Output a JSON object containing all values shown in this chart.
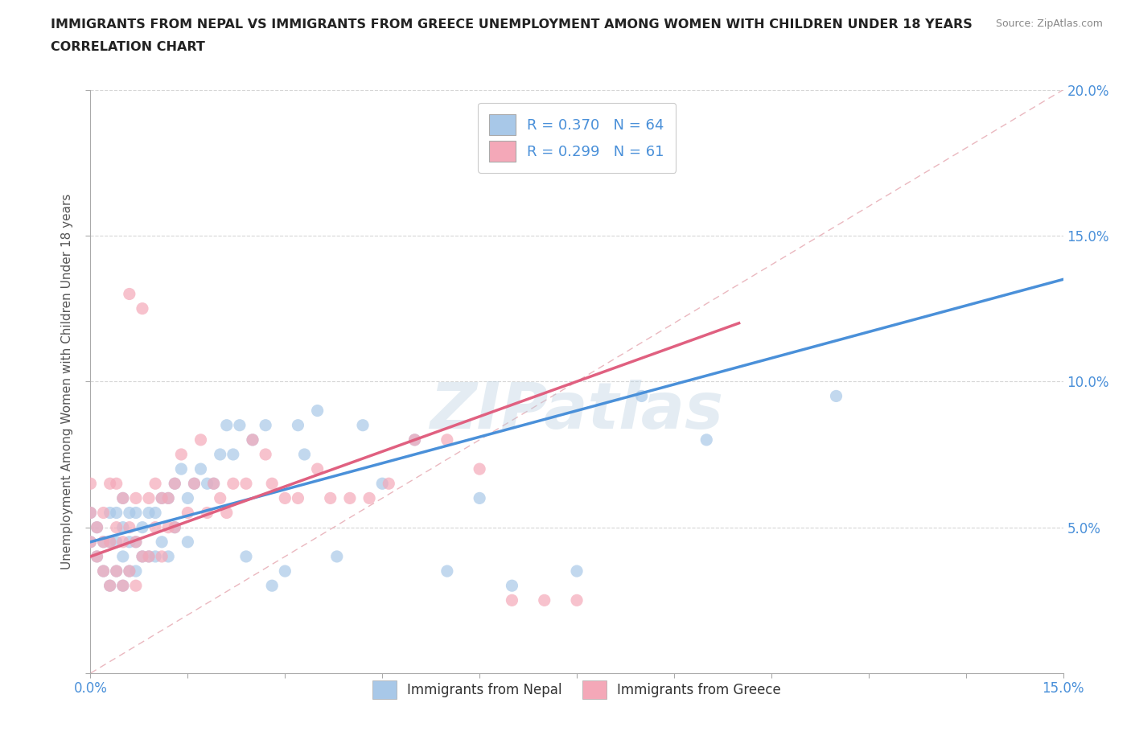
{
  "title_line1": "IMMIGRANTS FROM NEPAL VS IMMIGRANTS FROM GREECE UNEMPLOYMENT AMONG WOMEN WITH CHILDREN UNDER 18 YEARS",
  "title_line2": "CORRELATION CHART",
  "source_text": "Source: ZipAtlas.com",
  "watermark": "ZIPatlas",
  "ylabel": "Unemployment Among Women with Children Under 18 years",
  "xlim": [
    0.0,
    0.15
  ],
  "ylim": [
    0.0,
    0.2
  ],
  "nepal_color": "#a8c8e8",
  "greece_color": "#f4a8b8",
  "nepal_line_color": "#4a90d9",
  "greece_line_color": "#e06080",
  "diagonal_color": "#e8b0b8",
  "R_nepal": 0.37,
  "N_nepal": 64,
  "R_greece": 0.299,
  "N_greece": 61,
  "legend_entries": [
    "Immigrants from Nepal",
    "Immigrants from Greece"
  ],
  "nepal_line_x": [
    0.0,
    0.15
  ],
  "nepal_line_y": [
    0.045,
    0.135
  ],
  "greece_line_x": [
    0.0,
    0.1
  ],
  "greece_line_y": [
    0.04,
    0.12
  ],
  "background_color": "#ffffff",
  "grid_color": "#cccccc",
  "title_color": "#222222",
  "axis_label_color": "#4a90d9",
  "legend_r_color": "#4a90d9",
  "nepal_scatter_x": [
    0.0,
    0.0,
    0.001,
    0.001,
    0.002,
    0.002,
    0.003,
    0.003,
    0.003,
    0.004,
    0.004,
    0.004,
    0.005,
    0.005,
    0.005,
    0.005,
    0.006,
    0.006,
    0.006,
    0.007,
    0.007,
    0.007,
    0.008,
    0.008,
    0.009,
    0.009,
    0.01,
    0.01,
    0.011,
    0.011,
    0.012,
    0.012,
    0.013,
    0.013,
    0.014,
    0.015,
    0.015,
    0.016,
    0.017,
    0.018,
    0.019,
    0.02,
    0.021,
    0.022,
    0.023,
    0.024,
    0.025,
    0.027,
    0.028,
    0.03,
    0.032,
    0.033,
    0.035,
    0.038,
    0.042,
    0.045,
    0.05,
    0.055,
    0.06,
    0.065,
    0.075,
    0.085,
    0.095,
    0.115
  ],
  "nepal_scatter_y": [
    0.055,
    0.045,
    0.04,
    0.05,
    0.035,
    0.045,
    0.03,
    0.045,
    0.055,
    0.035,
    0.045,
    0.055,
    0.03,
    0.04,
    0.05,
    0.06,
    0.035,
    0.045,
    0.055,
    0.035,
    0.045,
    0.055,
    0.04,
    0.05,
    0.04,
    0.055,
    0.04,
    0.055,
    0.045,
    0.06,
    0.04,
    0.06,
    0.05,
    0.065,
    0.07,
    0.045,
    0.06,
    0.065,
    0.07,
    0.065,
    0.065,
    0.075,
    0.085,
    0.075,
    0.085,
    0.04,
    0.08,
    0.085,
    0.03,
    0.035,
    0.085,
    0.075,
    0.09,
    0.04,
    0.085,
    0.065,
    0.08,
    0.035,
    0.06,
    0.03,
    0.035,
    0.095,
    0.08,
    0.095
  ],
  "greece_scatter_x": [
    0.0,
    0.0,
    0.0,
    0.001,
    0.001,
    0.002,
    0.002,
    0.002,
    0.003,
    0.003,
    0.003,
    0.004,
    0.004,
    0.004,
    0.005,
    0.005,
    0.005,
    0.006,
    0.006,
    0.006,
    0.007,
    0.007,
    0.007,
    0.008,
    0.008,
    0.009,
    0.009,
    0.01,
    0.01,
    0.011,
    0.011,
    0.012,
    0.012,
    0.013,
    0.013,
    0.014,
    0.015,
    0.016,
    0.017,
    0.018,
    0.019,
    0.02,
    0.021,
    0.022,
    0.024,
    0.025,
    0.027,
    0.028,
    0.03,
    0.032,
    0.035,
    0.037,
    0.04,
    0.043,
    0.046,
    0.05,
    0.055,
    0.06,
    0.065,
    0.07,
    0.075
  ],
  "greece_scatter_y": [
    0.045,
    0.055,
    0.065,
    0.04,
    0.05,
    0.035,
    0.045,
    0.055,
    0.03,
    0.045,
    0.065,
    0.035,
    0.05,
    0.065,
    0.03,
    0.045,
    0.06,
    0.035,
    0.05,
    0.13,
    0.03,
    0.045,
    0.06,
    0.04,
    0.125,
    0.04,
    0.06,
    0.05,
    0.065,
    0.04,
    0.06,
    0.05,
    0.06,
    0.05,
    0.065,
    0.075,
    0.055,
    0.065,
    0.08,
    0.055,
    0.065,
    0.06,
    0.055,
    0.065,
    0.065,
    0.08,
    0.075,
    0.065,
    0.06,
    0.06,
    0.07,
    0.06,
    0.06,
    0.06,
    0.065,
    0.08,
    0.08,
    0.07,
    0.025,
    0.025,
    0.025
  ]
}
